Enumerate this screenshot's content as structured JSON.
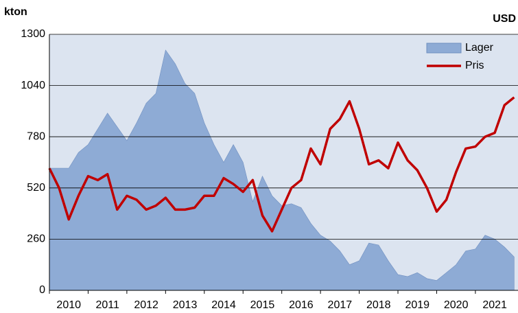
{
  "chart_data": {
    "type": "area-line",
    "y_label": "kton",
    "y2_label": "USD",
    "x": [
      2010.0,
      2010.25,
      2010.5,
      2010.75,
      2011.0,
      2011.25,
      2011.5,
      2011.75,
      2012.0,
      2012.25,
      2012.5,
      2012.75,
      2013.0,
      2013.25,
      2013.5,
      2013.75,
      2014.0,
      2014.25,
      2014.5,
      2014.75,
      2015.0,
      2015.25,
      2015.5,
      2015.75,
      2016.0,
      2016.25,
      2016.5,
      2016.75,
      2017.0,
      2017.25,
      2017.5,
      2017.75,
      2018.0,
      2018.25,
      2018.5,
      2018.75,
      2019.0,
      2019.25,
      2019.5,
      2019.75,
      2020.0,
      2020.25,
      2020.5,
      2020.75,
      2021.0,
      2021.25,
      2021.5,
      2021.75,
      2022.0
    ],
    "series": [
      {
        "name": "Lager",
        "color": "#8eabd5",
        "kind": "area",
        "values": [
          620,
          620,
          620,
          700,
          740,
          820,
          900,
          830,
          760,
          850,
          950,
          1000,
          1220,
          1150,
          1050,
          1000,
          850,
          740,
          650,
          740,
          650,
          450,
          580,
          480,
          430,
          440,
          420,
          340,
          280,
          250,
          200,
          130,
          150,
          240,
          230,
          150,
          80,
          70,
          90,
          60,
          50,
          90,
          130,
          200,
          210,
          280,
          260,
          220,
          170
        ]
      },
      {
        "name": "Pris",
        "color": "#c00000",
        "kind": "line",
        "axis": "y2",
        "values": [
          620,
          520,
          360,
          480,
          580,
          560,
          590,
          410,
          480,
          460,
          410,
          430,
          470,
          410,
          410,
          420,
          480,
          480,
          570,
          540,
          500,
          560,
          380,
          300,
          410,
          520,
          560,
          720,
          640,
          820,
          870,
          960,
          820,
          640,
          660,
          620,
          750,
          660,
          610,
          520,
          400,
          460,
          600,
          720,
          730,
          780,
          800,
          940,
          980
        ]
      }
    ],
    "xlim": [
      2010,
      2022.1
    ],
    "xticks": [
      2010,
      2011,
      2012,
      2013,
      2014,
      2015,
      2016,
      2017,
      2018,
      2019,
      2020,
      2021
    ],
    "ylim": [
      0,
      1300
    ],
    "yticks": [
      0,
      260,
      520,
      780,
      1040,
      1300
    ],
    "y2lim": [
      0,
      1300
    ],
    "grid": true,
    "legend": "top-right",
    "background": "#dce4f0"
  }
}
